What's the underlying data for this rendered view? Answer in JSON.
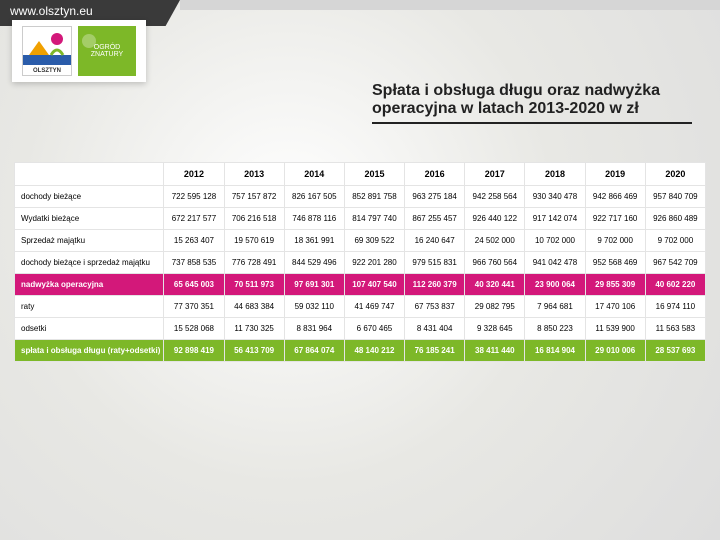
{
  "header": {
    "url": "www.olsztyn.eu",
    "logo_text": "OLSZTYN",
    "logo_side_text": "OGRÓD ZNATURY"
  },
  "title_line1": "Spłata i obsługa długu oraz nadwyżka",
  "title_line2": "operacyjna w latach 2013-2020 w zł",
  "table": {
    "columns": [
      "2012",
      "2013",
      "2014",
      "2015",
      "2016",
      "2017",
      "2018",
      "2019",
      "2020"
    ],
    "rows": [
      {
        "label": "dochody bieżące",
        "cls": "",
        "cells": [
          "722 595 128",
          "757 157 872",
          "826 167 505",
          "852 891 758",
          "963 275 184",
          "942 258 564",
          "930 340 478",
          "942 866 469",
          "957 840 709"
        ]
      },
      {
        "label": "Wydatki bieżące",
        "cls": "",
        "cells": [
          "672 217 577",
          "706 216 518",
          "746 878 116",
          "814 797 740",
          "867 255 457",
          "926 440 122",
          "917 142 074",
          "922 717 160",
          "926 860 489"
        ]
      },
      {
        "label": "Sprzedaż majątku",
        "cls": "",
        "cells": [
          "15 263 407",
          "19 570 619",
          "18 361 991",
          "69 309 522",
          "16 240 647",
          "24 502 000",
          "10 702 000",
          "9 702 000",
          "9 702 000"
        ]
      },
      {
        "label": "dochody bieżące i sprzedaż majątku",
        "cls": "",
        "cells": [
          "737 858 535",
          "776 728 491",
          "844 529 496",
          "922 201 280",
          "979 515 831",
          "966 760 564",
          "941 042 478",
          "952 568 469",
          "967 542 709"
        ]
      },
      {
        "label": "nadwyżka operacyjna",
        "cls": "hl-pink",
        "cells": [
          "65 645 003",
          "70 511 973",
          "97 691 301",
          "107 407 540",
          "112 260 379",
          "40 320 441",
          "23 900 064",
          "29 855 309",
          "40 602 220"
        ]
      },
      {
        "label": "raty",
        "cls": "",
        "cells": [
          "77 370 351",
          "44 683 384",
          "59 032 110",
          "41 469 747",
          "67 753 837",
          "29 082 795",
          "7 964 681",
          "17 470 106",
          "16 974 110"
        ]
      },
      {
        "label": "odsetki",
        "cls": "",
        "cells": [
          "15 528 068",
          "11 730 325",
          "8 831 964",
          "6 670 465",
          "8 431 404",
          "9 328 645",
          "8 850 223",
          "11 539 900",
          "11 563 583"
        ]
      },
      {
        "label": "spłata i obsługa długu (raty+odsetki)",
        "cls": "hl-green",
        "cells": [
          "92 898 419",
          "56 413 709",
          "67 864 074",
          "48 140 212",
          "76 185 241",
          "38 411 440",
          "16 814 904",
          "29 010 006",
          "28 537 693"
        ]
      }
    ],
    "colors": {
      "pink": "#d3187a",
      "green": "#7db828",
      "border": "#e4e4e4",
      "text": "#222222"
    },
    "cell_fontsize": 8,
    "header_fontsize": 9
  }
}
